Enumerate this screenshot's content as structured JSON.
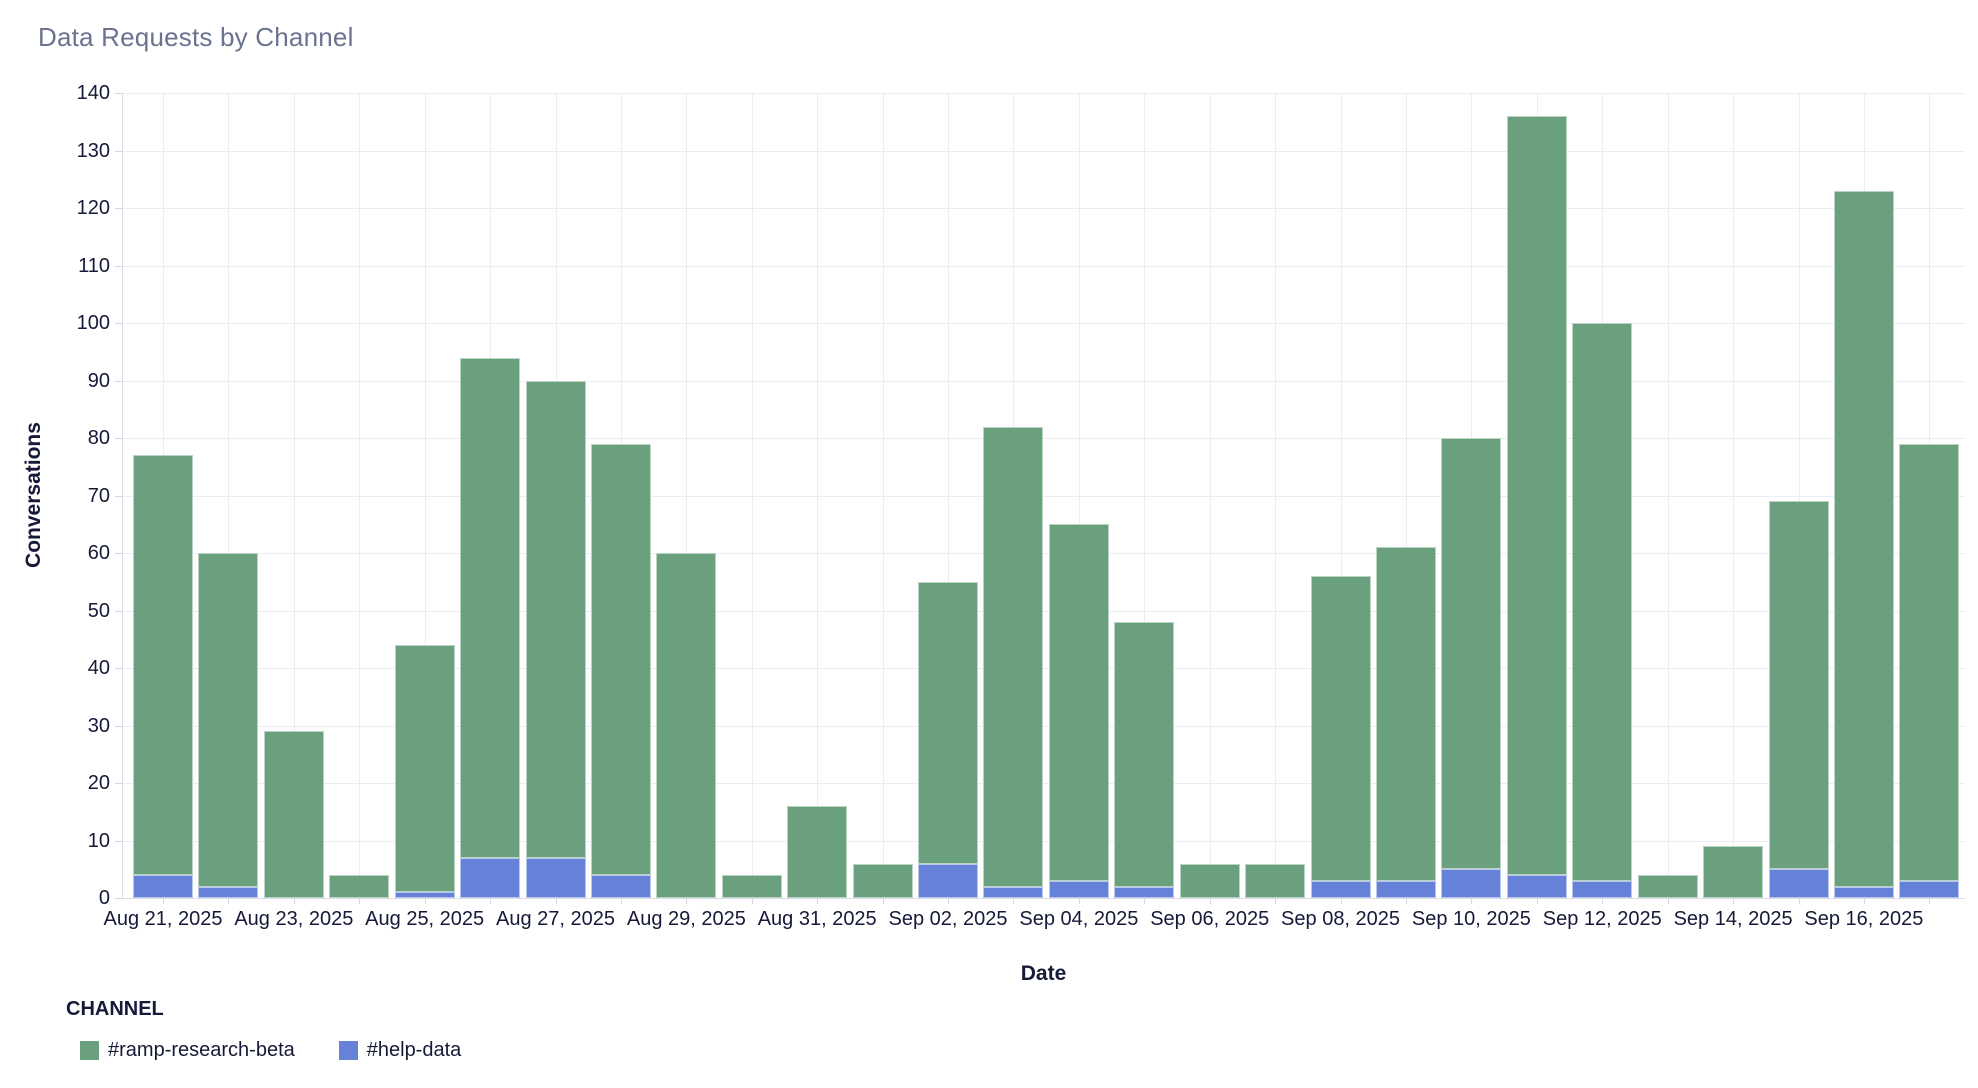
{
  "title": "Data Requests by Channel",
  "axes": {
    "y_title": "Conversations",
    "x_title": "Date",
    "y_ticks": [
      0,
      10,
      20,
      30,
      40,
      50,
      60,
      70,
      80,
      90,
      100,
      110,
      120,
      130,
      140
    ]
  },
  "legend": {
    "title": "CHANNEL",
    "items": [
      {
        "label": "#ramp-research-beta",
        "color": "#6aa07d"
      },
      {
        "label": "#help-data",
        "color": "#6582d8"
      }
    ]
  },
  "chart_data": {
    "type": "bar",
    "stacked": true,
    "title": "Data Requests by Channel",
    "xlabel": "Date",
    "ylabel": "Conversations",
    "ylim": [
      0,
      140
    ],
    "y_tick_step": 10,
    "grid": true,
    "legend_position": "bottom",
    "x_tick_label_every": 2,
    "categories": [
      "Aug 21, 2025",
      "Aug 22, 2025",
      "Aug 23, 2025",
      "Aug 24, 2025",
      "Aug 25, 2025",
      "Aug 26, 2025",
      "Aug 27, 2025",
      "Aug 28, 2025",
      "Aug 29, 2025",
      "Aug 30, 2025",
      "Aug 31, 2025",
      "Sep 01, 2025",
      "Sep 02, 2025",
      "Sep 03, 2025",
      "Sep 04, 2025",
      "Sep 05, 2025",
      "Sep 06, 2025",
      "Sep 07, 2025",
      "Sep 08, 2025",
      "Sep 09, 2025",
      "Sep 10, 2025",
      "Sep 11, 2025",
      "Sep 12, 2025",
      "Sep 13, 2025",
      "Sep 14, 2025",
      "Sep 15, 2025",
      "Sep 16, 2025",
      "Sep 17, 2025"
    ],
    "series": [
      {
        "name": "#ramp-research-beta",
        "color": "#6aa07d",
        "stack_position": "top",
        "values": [
          73,
          58,
          29,
          4,
          43,
          87,
          83,
          75,
          60,
          4,
          16,
          6,
          49,
          80,
          62,
          46,
          6,
          6,
          53,
          58,
          75,
          132,
          97,
          4,
          9,
          64,
          121,
          76
        ]
      },
      {
        "name": "#help-data",
        "color": "#6582d8",
        "stack_position": "bottom",
        "values": [
          4,
          2,
          0,
          0,
          1,
          7,
          7,
          4,
          0,
          0,
          0,
          0,
          6,
          2,
          3,
          2,
          0,
          0,
          3,
          3,
          5,
          4,
          3,
          0,
          0,
          5,
          2,
          3
        ]
      }
    ]
  }
}
